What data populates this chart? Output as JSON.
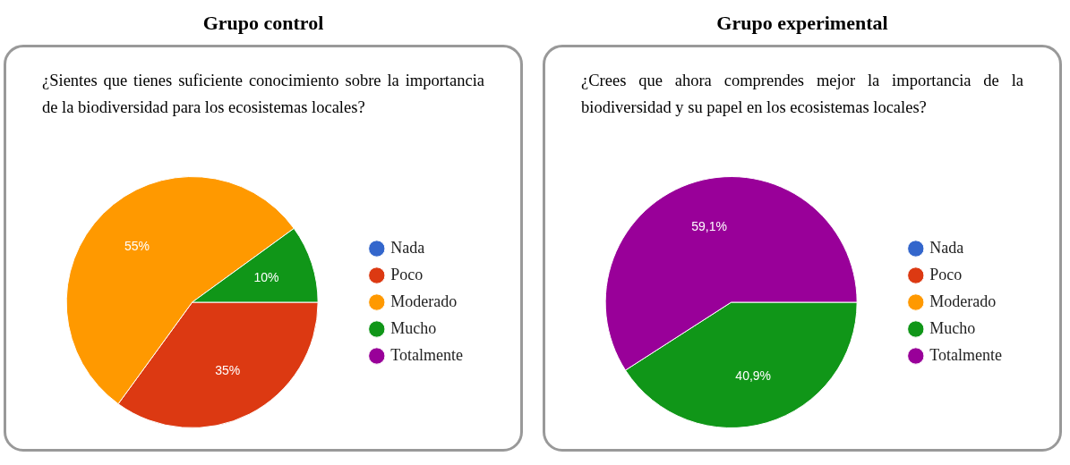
{
  "chart_data": [
    {
      "type": "pie",
      "title": "Grupo control",
      "subtitle": "¿Sientes que tienes suficiente conocimiento sobre la importancia de la biodiversidad para los ecosistemas locales?",
      "categories": [
        "Nada",
        "Poco",
        "Moderado",
        "Mucho",
        "Totalmente"
      ],
      "values": [
        0,
        35,
        55,
        10,
        0
      ],
      "value_labels": [
        null,
        "35%",
        "55%",
        "10%",
        null
      ],
      "colors": [
        "#3366cc",
        "#dc3912",
        "#ff9900",
        "#109618",
        "#990099"
      ],
      "legend": "right"
    },
    {
      "type": "pie",
      "title": "Grupo experimental",
      "subtitle": "¿Crees que ahora comprendes mejor la importancia de la biodiversidad y su papel en los ecosistemas locales?",
      "categories": [
        "Nada",
        "Poco",
        "Moderado",
        "Mucho",
        "Totalmente"
      ],
      "values": [
        0,
        0,
        0,
        40.9,
        59.1
      ],
      "value_labels": [
        null,
        null,
        null,
        "40,9%",
        "59,1%"
      ],
      "colors": [
        "#3366cc",
        "#dc3912",
        "#ff9900",
        "#109618",
        "#990099"
      ],
      "legend": "right"
    }
  ]
}
